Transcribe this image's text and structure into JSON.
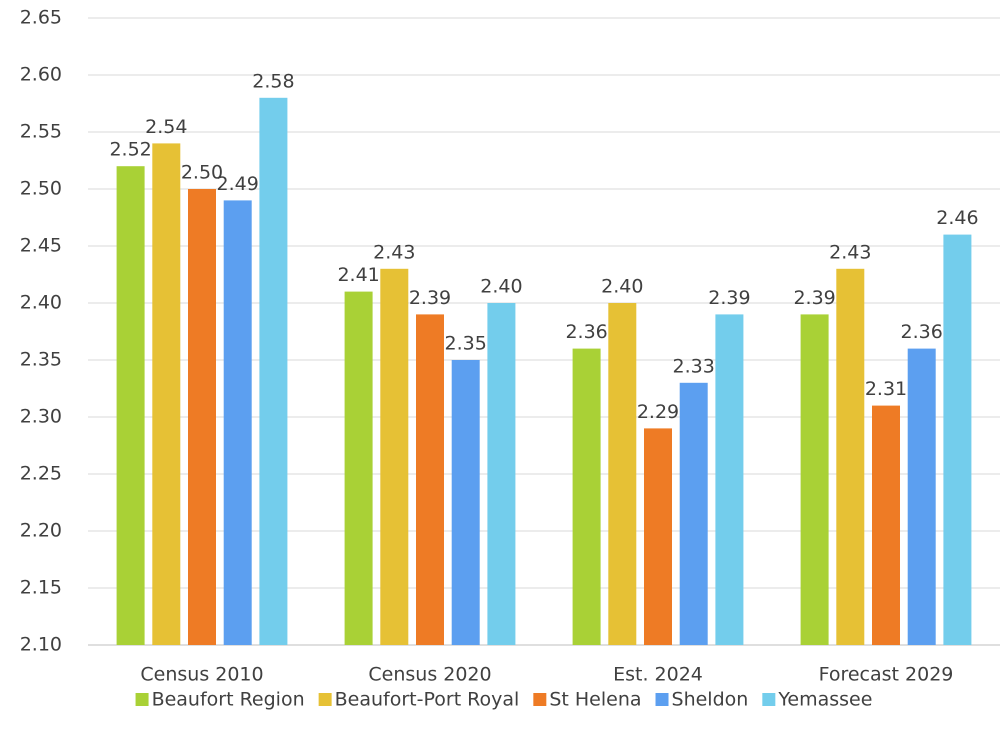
{
  "chart_data": {
    "type": "bar",
    "categories": [
      "Census 2010",
      "Census 2020",
      "Est. 2024",
      "Forecast 2029"
    ],
    "series": [
      {
        "name": "Beaufort Region",
        "color": "#a9d136",
        "values": [
          2.52,
          2.41,
          2.36,
          2.39
        ],
        "value_labels": [
          "2.52",
          "2.41",
          "2.36",
          "2.39"
        ]
      },
      {
        "name": "Beaufort-Port Royal",
        "color": "#e6c135",
        "values": [
          2.54,
          2.43,
          2.4,
          2.43
        ],
        "value_labels": [
          "2.54",
          "2.43",
          "2.40",
          "2.43"
        ]
      },
      {
        "name": "St Helena",
        "color": "#ee7b25",
        "values": [
          2.5,
          2.39,
          2.29,
          2.31
        ],
        "value_labels": [
          "2.50",
          "2.39",
          "2.29",
          "2.31"
        ]
      },
      {
        "name": "Sheldon",
        "color": "#5c9ff0",
        "values": [
          2.49,
          2.35,
          2.33,
          2.36
        ],
        "value_labels": [
          "2.49",
          "2.35",
          "2.33",
          "2.36"
        ]
      },
      {
        "name": "Yemassee",
        "color": "#73cdec",
        "values": [
          2.58,
          2.4,
          2.39,
          2.46
        ],
        "value_labels": [
          "2.58",
          "2.40",
          "2.39",
          "2.46"
        ]
      }
    ],
    "ylim": [
      2.1,
      2.65
    ],
    "yticks": [
      {
        "value": 2.1,
        "label": "2.10"
      },
      2.15,
      {
        "value": 2.2,
        "label": "2.20"
      },
      2.25,
      {
        "value": 2.3,
        "label": "2.30"
      },
      2.35,
      {
        "value": 2.4,
        "label": "2.40"
      },
      2.45,
      {
        "value": 2.5,
        "label": "2.50"
      },
      2.55,
      {
        "value": 2.6,
        "label": "2.60"
      },
      2.65
    ],
    "grid": true,
    "legend": "bottom"
  }
}
